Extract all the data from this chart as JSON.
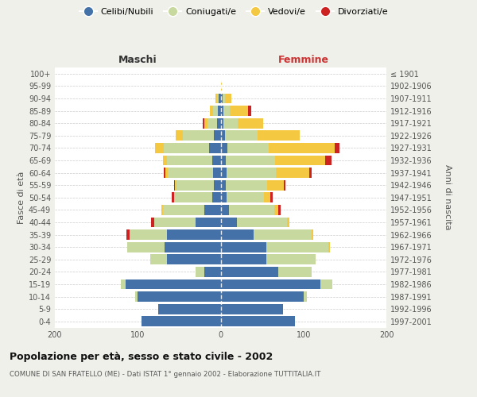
{
  "age_groups": [
    "0-4",
    "5-9",
    "10-14",
    "15-19",
    "20-24",
    "25-29",
    "30-34",
    "35-39",
    "40-44",
    "45-49",
    "50-54",
    "55-59",
    "60-64",
    "65-69",
    "70-74",
    "75-79",
    "80-84",
    "85-89",
    "90-94",
    "95-99",
    "100+"
  ],
  "birth_years": [
    "1997-2001",
    "1992-1996",
    "1987-1991",
    "1982-1986",
    "1977-1981",
    "1972-1976",
    "1967-1971",
    "1962-1966",
    "1957-1961",
    "1952-1956",
    "1947-1951",
    "1942-1946",
    "1937-1941",
    "1932-1936",
    "1927-1931",
    "1922-1926",
    "1917-1921",
    "1912-1916",
    "1907-1911",
    "1902-1906",
    "≤ 1901"
  ],
  "maschi_celibi": [
    95,
    75,
    100,
    115,
    20,
    65,
    68,
    65,
    30,
    20,
    10,
    8,
    9,
    10,
    14,
    8,
    4,
    3,
    2,
    0,
    0
  ],
  "maschi_coniugati": [
    0,
    0,
    3,
    5,
    10,
    20,
    45,
    45,
    50,
    50,
    45,
    45,
    55,
    55,
    55,
    38,
    12,
    6,
    2,
    0,
    0
  ],
  "maschi_vedovi": [
    0,
    0,
    0,
    0,
    0,
    0,
    0,
    0,
    0,
    1,
    1,
    2,
    3,
    5,
    10,
    8,
    4,
    4,
    2,
    0,
    0
  ],
  "maschi_divorziati": [
    0,
    0,
    0,
    0,
    0,
    0,
    0,
    4,
    4,
    0,
    3,
    1,
    2,
    0,
    0,
    0,
    2,
    0,
    0,
    0,
    0
  ],
  "femmine_nubili": [
    90,
    75,
    100,
    120,
    70,
    55,
    55,
    40,
    20,
    10,
    7,
    6,
    7,
    6,
    8,
    5,
    3,
    3,
    2,
    0,
    0
  ],
  "femmine_coniugate": [
    0,
    0,
    4,
    15,
    40,
    60,
    75,
    70,
    60,
    55,
    45,
    50,
    60,
    60,
    50,
    40,
    18,
    8,
    3,
    0,
    0
  ],
  "femmine_vedove": [
    0,
    0,
    0,
    0,
    0,
    0,
    2,
    2,
    3,
    5,
    8,
    20,
    40,
    60,
    80,
    50,
    30,
    22,
    8,
    1,
    0
  ],
  "femmine_divorziate": [
    0,
    0,
    0,
    0,
    0,
    0,
    0,
    0,
    0,
    2,
    3,
    2,
    3,
    8,
    5,
    0,
    0,
    4,
    0,
    0,
    0
  ],
  "color_celibi": "#4472a8",
  "color_coniugati": "#c8d9a0",
  "color_vedovi": "#f5c842",
  "color_divorziati": "#cc2222",
  "legend_labels": [
    "Celibi/Nubili",
    "Coniugati/e",
    "Vedovi/e",
    "Divorziati/e"
  ],
  "title": "Popolazione per età, sesso e stato civile - 2002",
  "subtitle": "COMUNE DI SAN FRATELLO (ME) - Dati ISTAT 1° gennaio 2002 - Elaborazione TUTTITALIA.IT",
  "label_maschi": "Maschi",
  "label_femmine": "Femmine",
  "ylabel_left": "Fasce di età",
  "ylabel_right": "Anni di nascita",
  "xlim": 200,
  "bg_color": "#f0f0eb",
  "plot_bg": "#ffffff"
}
